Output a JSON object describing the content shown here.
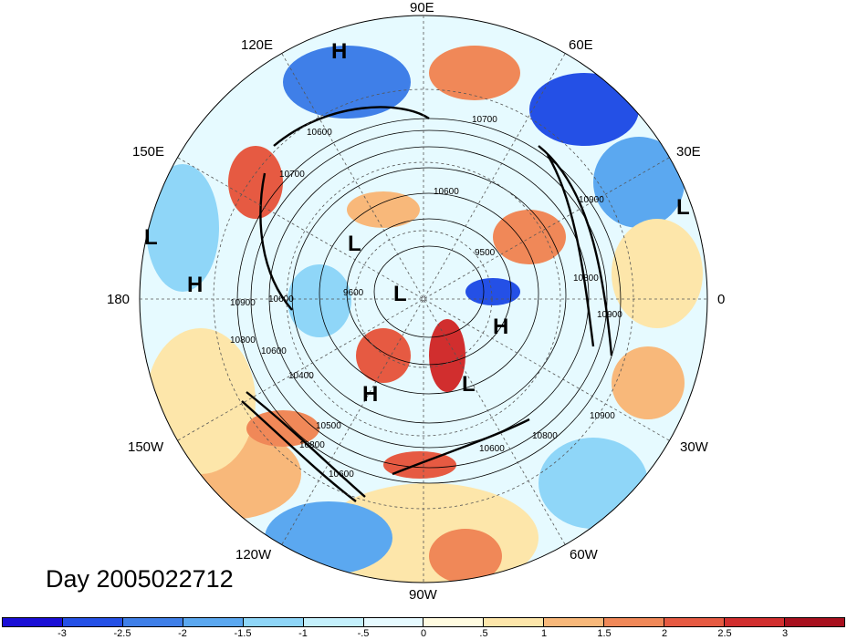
{
  "title": "Day 2005022712",
  "longitude_labels": {
    "lon_90e": "90E",
    "lon_120e": "120E",
    "lon_60e": "60E",
    "lon_150e": "150E",
    "lon_30e": "30E",
    "lon_180": "180",
    "lon_0": "0",
    "lon_150w": "150W",
    "lon_30w": "30W",
    "lon_120w": "120W",
    "lon_60w": "60W",
    "lon_90w": "90W"
  },
  "pressure_centers": [
    {
      "label": "H"
    },
    {
      "label": "L"
    },
    {
      "label": "L"
    },
    {
      "label": "H"
    },
    {
      "label": "L"
    },
    {
      "label": "L"
    },
    {
      "label": "H"
    },
    {
      "label": "H"
    },
    {
      "label": "L"
    }
  ],
  "contour_labels": [
    "10600",
    "10600",
    "10700",
    "10600",
    "9600",
    "10900",
    "10800",
    "10600",
    "10400",
    "10500",
    "10600",
    "10800",
    "10900",
    "10800",
    "10600",
    "10700",
    "10900",
    "10800",
    "10900",
    "9500"
  ],
  "colorbar": {
    "colors": [
      "#1a0fd6",
      "#2450e6",
      "#3f7fe8",
      "#5ba8f0",
      "#8fd6f8",
      "#c4f0fc",
      "#e6faff",
      "#fffbe0",
      "#fde6aa",
      "#f8b87a",
      "#f08858",
      "#e65a42",
      "#d12e2e",
      "#a8101e"
    ],
    "labels": [
      "-3",
      "-2.5",
      "-2",
      "-1.5",
      "-1",
      "-.5",
      "0",
      ".5",
      "1",
      "1.5",
      "2",
      "2.5",
      "3"
    ]
  }
}
